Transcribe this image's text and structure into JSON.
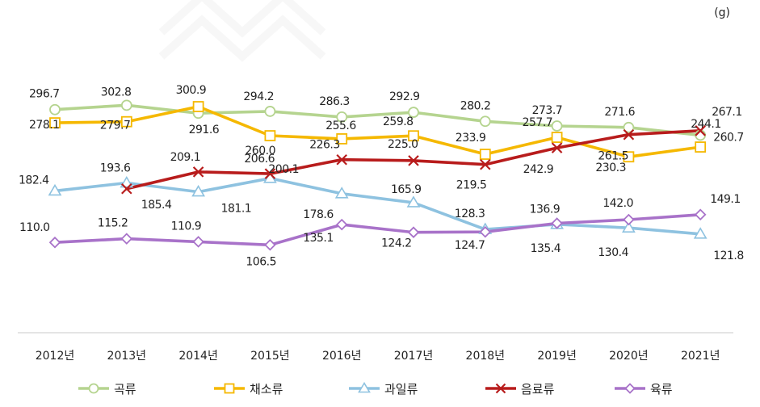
{
  "chart_data": {
    "type": "line",
    "unit": "(g)",
    "categories": [
      "2012년",
      "2013년",
      "2014년",
      "2015년",
      "2016년",
      "2017년",
      "2018년",
      "2019년",
      "2020년",
      "2021년"
    ],
    "ylim": [
      0,
      330
    ],
    "series": [
      {
        "name": "곡류",
        "color": "#b5d48f",
        "marker": "circle",
        "values": [
          296.7,
          302.8,
          291.6,
          294.2,
          286.3,
          292.9,
          280.2,
          273.7,
          271.6,
          260.7
        ]
      },
      {
        "name": "채소류",
        "color": "#f5b800",
        "marker": "square",
        "values": [
          278.1,
          279.7,
          300.9,
          260.0,
          255.6,
          259.8,
          233.9,
          257.7,
          230.3,
          244.1
        ]
      },
      {
        "name": "과일류",
        "color": "#8ec2e0",
        "marker": "triangle",
        "values": [
          182.4,
          193.6,
          181.1,
          200.1,
          178.6,
          165.9,
          128.3,
          135.4,
          130.4,
          121.8
        ]
      },
      {
        "name": "음료류",
        "color": "#b81c1c",
        "marker": "x",
        "values": [
          null,
          185.4,
          209.1,
          206.6,
          226.3,
          225.0,
          219.5,
          242.9,
          261.5,
          267.1
        ]
      },
      {
        "name": "육류",
        "color": "#a872c9",
        "marker": "diamond",
        "values": [
          110.0,
          115.2,
          110.9,
          106.5,
          135.1,
          124.2,
          124.7,
          136.9,
          142.0,
          149.1
        ]
      }
    ]
  }
}
